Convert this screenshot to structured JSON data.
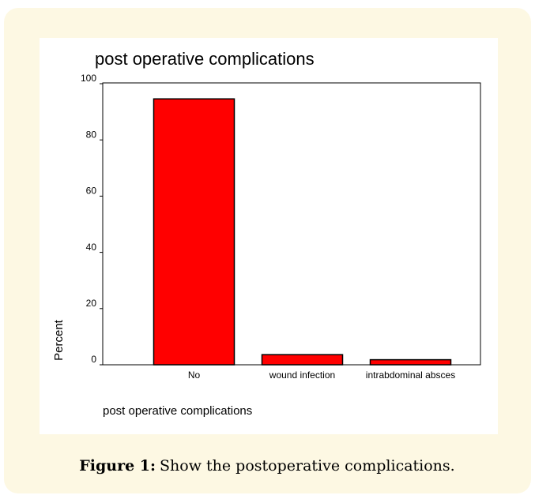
{
  "chart_data": {
    "type": "bar",
    "title": "post operative complications",
    "xlabel": "post operative complications",
    "ylabel": "Percent",
    "categories": [
      "No",
      "wound infection",
      "intrabdominal absces"
    ],
    "values": [
      94.6,
      3.6,
      1.8
    ],
    "color": "#ff0000",
    "ylim": [
      0,
      100
    ],
    "yticks": [
      0,
      20,
      40,
      60,
      80,
      100
    ]
  },
  "caption": {
    "label": "Figure 1:",
    "text": "Show the postoperative complications."
  }
}
